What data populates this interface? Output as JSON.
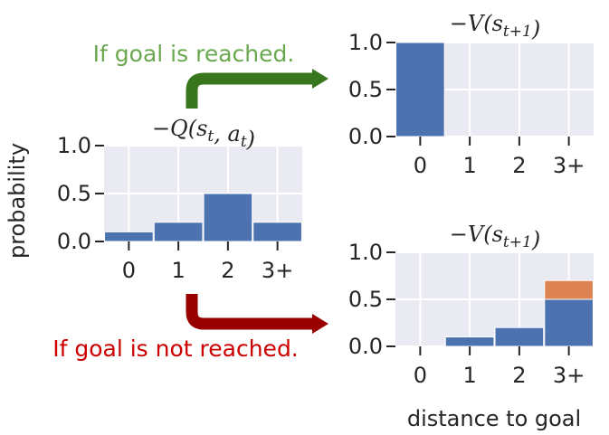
{
  "colors": {
    "panel_bg": "#eaeaf2",
    "grid": "#ffffff",
    "bar_primary": "#4c72b0",
    "bar_secondary": "#dd8452",
    "text": "#262626",
    "reached_color": "#6aa84f",
    "reached_arrow": "#38761d",
    "not_reached_color": "#cc0000",
    "not_reached_arrow": "#990000"
  },
  "annotations": {
    "reached": "If goal is reached.",
    "not_reached": "If goal is not reached."
  },
  "labels": {
    "ylabel": "probability",
    "xlabel": "distance to goal"
  },
  "chart_data": [
    {
      "type": "bar",
      "title": "−Q(s_t, a_t)",
      "categories": [
        "0",
        "1",
        "2",
        "3+"
      ],
      "series": [
        {
          "values": [
            0.1,
            0.2,
            0.5,
            0.2
          ]
        }
      ],
      "ylim": [
        0,
        1.0
      ],
      "yticks": [
        "0.0",
        "0.5",
        "1.0"
      ],
      "grid": true
    },
    {
      "type": "bar",
      "title": "−V(s_{t+1})",
      "categories": [
        "0",
        "1",
        "2",
        "3+"
      ],
      "series": [
        {
          "values": [
            1.0,
            0,
            0,
            0
          ]
        }
      ],
      "ylim": [
        0,
        1.0
      ],
      "yticks": [
        "0.0",
        "0.5",
        "1.0"
      ],
      "grid": true
    },
    {
      "type": "bar",
      "title": "−V(s_{t+1})",
      "categories": [
        "0",
        "1",
        "2",
        "3+"
      ],
      "series": [
        {
          "values": [
            0,
            0.1,
            0.2,
            0.5
          ]
        },
        {
          "values": [
            0,
            0,
            0,
            0.2
          ]
        }
      ],
      "stacked": true,
      "ylim": [
        0,
        1.0
      ],
      "yticks": [
        "0.0",
        "0.5",
        "1.0"
      ],
      "grid": true
    }
  ]
}
